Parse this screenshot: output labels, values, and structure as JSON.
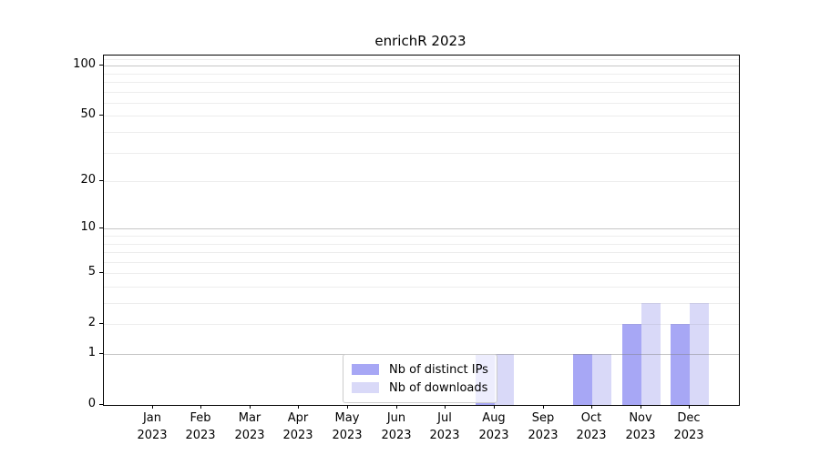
{
  "figure": {
    "title": "enrichR 2023",
    "background": "#ffffff"
  },
  "chart_data": {
    "type": "bar",
    "title": "enrichR 2023",
    "categories": [
      "Jan 2023",
      "Feb 2023",
      "Mar 2023",
      "Apr 2023",
      "May 2023",
      "Jun 2023",
      "Jul 2023",
      "Aug 2023",
      "Sep 2023",
      "Oct 2023",
      "Nov 2023",
      "Dec 2023"
    ],
    "series": [
      {
        "name": "Nb of distinct IPs",
        "color": "#a7a7f5",
        "values": [
          0,
          0,
          0,
          0,
          0,
          0,
          0,
          1,
          0,
          1,
          2,
          2
        ]
      },
      {
        "name": "Nb of downloads",
        "color": "#d9d9f8",
        "values": [
          0,
          0,
          0,
          0,
          0,
          0,
          0,
          1,
          0,
          1,
          3,
          3
        ]
      }
    ],
    "xlabel": "",
    "ylabel": "",
    "yscale": "log1p",
    "ylim": [
      0,
      115
    ],
    "yticks": [
      0,
      1,
      2,
      5,
      10,
      20,
      50,
      100
    ],
    "grid": {
      "on": true,
      "major_values": [
        1,
        10,
        100
      ],
      "minor_values": [
        2,
        3,
        4,
        5,
        6,
        7,
        8,
        9,
        20,
        30,
        40,
        50,
        60,
        70,
        80,
        90,
        110
      ],
      "major_color": "rgba(128,128,128,0.45)",
      "minor_color": "rgba(128,128,128,0.14)"
    },
    "legend": {
      "position": "lower center",
      "items": [
        "Nb of distinct IPs",
        "Nb of downloads"
      ]
    },
    "bar_width_frac": 0.4
  }
}
